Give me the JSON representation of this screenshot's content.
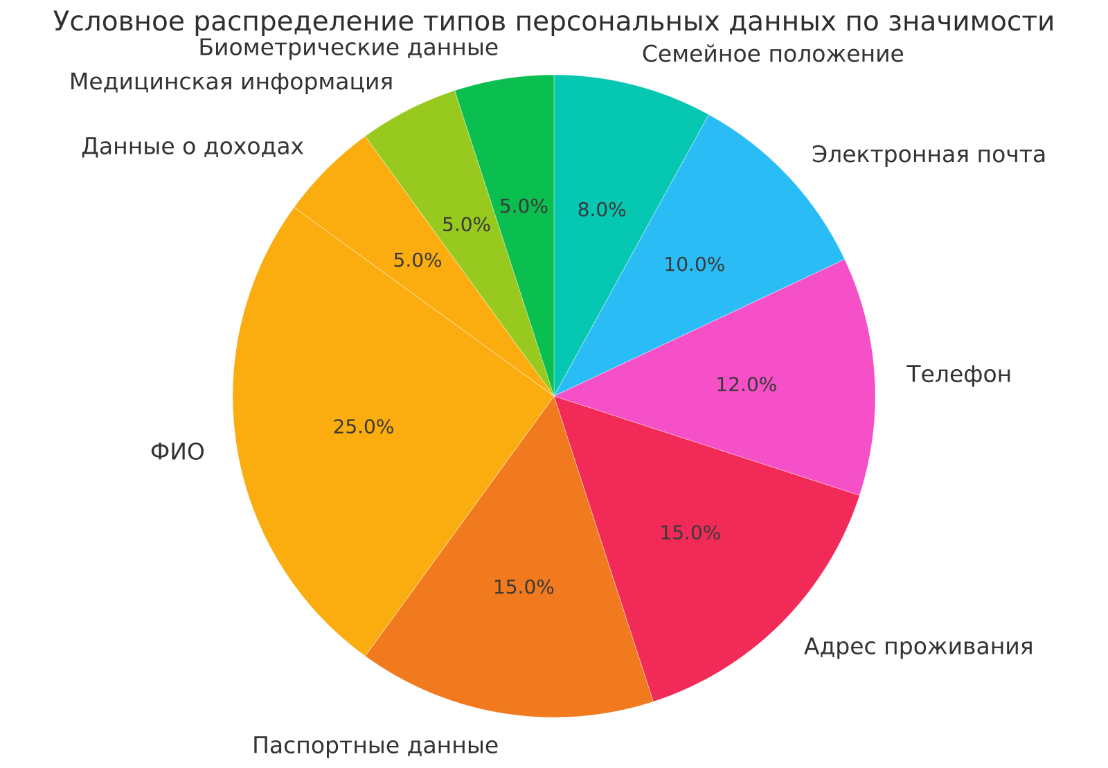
{
  "page": {
    "background_color": "#ffffff",
    "title_color": "#2f2f2f",
    "label_color": "#333333",
    "pct_label_color": "#3a3a3a"
  },
  "chart_data": {
    "type": "pie",
    "title": "Условное распределение типов персональных данных по значимости",
    "start_angle_deg": 90,
    "clockwise_from_top": true,
    "pct_distance": 0.6,
    "label_distance": 1.1,
    "legend": "none",
    "slices": [
      {
        "label": "Семейное положение",
        "value": 8.0,
        "pct_label": "8.0%",
        "color": "#05C7B2"
      },
      {
        "label": "Электронная почта",
        "value": 10.0,
        "pct_label": "10.0%",
        "color": "#2ABCF5"
      },
      {
        "label": "Телефон",
        "value": 12.0,
        "pct_label": "12.0%",
        "color": "#F650C8"
      },
      {
        "label": "Адрес проживания",
        "value": 15.0,
        "pct_label": "15.0%",
        "color": "#F22A58"
      },
      {
        "label": "Паспортные данные",
        "value": 15.0,
        "pct_label": "15.0%",
        "color": "#F1791E"
      },
      {
        "label": "ФИО",
        "value": 25.0,
        "pct_label": "25.0%",
        "color": "#FBAD0F"
      },
      {
        "label": "Данные о доходах",
        "value": 5.0,
        "pct_label": "5.0%",
        "color": "#FBAD0F"
      },
      {
        "label": "Медицинская информация",
        "value": 5.0,
        "pct_label": "5.0%",
        "color": "#98C91E"
      },
      {
        "label": "Биометрические данные",
        "value": 5.0,
        "pct_label": "5.0%",
        "color": "#0ABF4F"
      }
    ]
  }
}
